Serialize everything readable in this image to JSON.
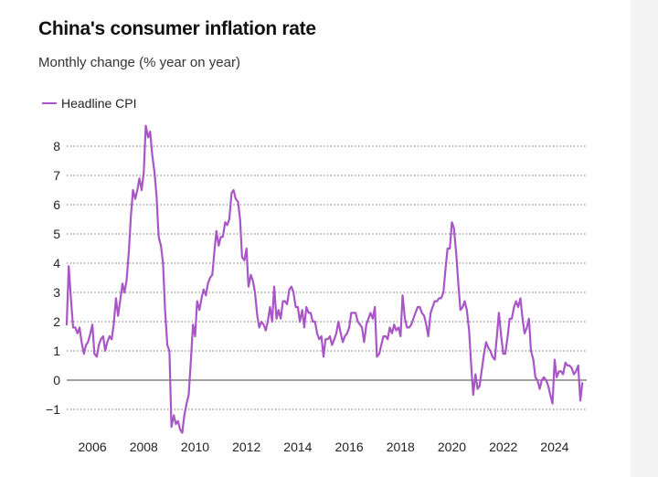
{
  "title": "China's consumer inflation rate",
  "subtitle": "Monthly change (% year on year)",
  "colors": {
    "series": "#a855c7",
    "grid": "#555555",
    "zero_line": "#444444"
  },
  "chart_data": {
    "type": "line",
    "title": "China's consumer inflation rate",
    "subtitle": "Monthly change (% year on year)",
    "xlabel": "",
    "ylabel": "",
    "ylim": [
      -1,
      8
    ],
    "xlim": [
      2005.0,
      2025.25
    ],
    "yticks": [
      -1,
      0,
      1,
      2,
      3,
      4,
      5,
      6,
      7,
      8
    ],
    "ytick_labels": [
      "−1",
      "0",
      "1",
      "2",
      "3",
      "4",
      "5",
      "6",
      "7",
      "8"
    ],
    "xticks": [
      2006,
      2008,
      2010,
      2012,
      2014,
      2016,
      2018,
      2020,
      2022,
      2024
    ],
    "xtick_labels": [
      "2006",
      "2008",
      "2010",
      "2012",
      "2014",
      "2016",
      "2018",
      "2020",
      "2022",
      "2024"
    ],
    "grid": "horizontal dotted",
    "legend": "top-left",
    "series": [
      {
        "name": "Headline CPI",
        "x": [
          2005.0,
          2005.08,
          2005.17,
          2005.25,
          2005.33,
          2005.42,
          2005.5,
          2005.58,
          2005.67,
          2005.75,
          2005.83,
          2005.92,
          2006.0,
          2006.08,
          2006.17,
          2006.25,
          2006.33,
          2006.42,
          2006.5,
          2006.58,
          2006.67,
          2006.75,
          2006.83,
          2006.92,
          2007.0,
          2007.08,
          2007.17,
          2007.25,
          2007.33,
          2007.42,
          2007.5,
          2007.58,
          2007.67,
          2007.75,
          2007.83,
          2007.92,
          2008.0,
          2008.08,
          2008.17,
          2008.25,
          2008.33,
          2008.42,
          2008.5,
          2008.58,
          2008.67,
          2008.75,
          2008.83,
          2008.92,
          2009.0,
          2009.08,
          2009.17,
          2009.25,
          2009.33,
          2009.42,
          2009.5,
          2009.58,
          2009.67,
          2009.75,
          2009.83,
          2009.92,
          2010.0,
          2010.08,
          2010.17,
          2010.25,
          2010.33,
          2010.42,
          2010.5,
          2010.58,
          2010.67,
          2010.75,
          2010.83,
          2010.92,
          2011.0,
          2011.08,
          2011.17,
          2011.25,
          2011.33,
          2011.42,
          2011.5,
          2011.58,
          2011.67,
          2011.75,
          2011.83,
          2011.92,
          2012.0,
          2012.08,
          2012.17,
          2012.25,
          2012.33,
          2012.42,
          2012.5,
          2012.58,
          2012.67,
          2012.75,
          2012.83,
          2012.92,
          2013.0,
          2013.08,
          2013.17,
          2013.25,
          2013.33,
          2013.42,
          2013.5,
          2013.58,
          2013.67,
          2013.75,
          2013.83,
          2013.92,
          2014.0,
          2014.08,
          2014.17,
          2014.25,
          2014.33,
          2014.42,
          2014.5,
          2014.58,
          2014.67,
          2014.75,
          2014.83,
          2014.92,
          2015.0,
          2015.08,
          2015.17,
          2015.25,
          2015.33,
          2015.42,
          2015.5,
          2015.58,
          2015.67,
          2015.75,
          2015.83,
          2015.92,
          2016.0,
          2016.08,
          2016.17,
          2016.25,
          2016.33,
          2016.42,
          2016.5,
          2016.58,
          2016.67,
          2016.75,
          2016.83,
          2016.92,
          2017.0,
          2017.08,
          2017.17,
          2017.25,
          2017.33,
          2017.42,
          2017.5,
          2017.58,
          2017.67,
          2017.75,
          2017.83,
          2017.92,
          2018.0,
          2018.08,
          2018.17,
          2018.25,
          2018.33,
          2018.42,
          2018.5,
          2018.58,
          2018.67,
          2018.75,
          2018.83,
          2018.92,
          2019.0,
          2019.08,
          2019.17,
          2019.25,
          2019.33,
          2019.42,
          2019.5,
          2019.58,
          2019.67,
          2019.75,
          2019.83,
          2019.92,
          2020.0,
          2020.08,
          2020.17,
          2020.25,
          2020.33,
          2020.42,
          2020.5,
          2020.58,
          2020.67,
          2020.75,
          2020.83,
          2020.92,
          2021.0,
          2021.08,
          2021.17,
          2021.25,
          2021.33,
          2021.42,
          2021.5,
          2021.58,
          2021.67,
          2021.75,
          2021.83,
          2021.92,
          2022.0,
          2022.08,
          2022.17,
          2022.25,
          2022.33,
          2022.42,
          2022.5,
          2022.58,
          2022.67,
          2022.75,
          2022.83,
          2022.92,
          2023.0,
          2023.08,
          2023.17,
          2023.25,
          2023.33,
          2023.42,
          2023.5,
          2023.58,
          2023.67,
          2023.75,
          2023.83,
          2023.92,
          2024.0,
          2024.08,
          2024.17,
          2024.25,
          2024.33,
          2024.42,
          2024.5,
          2024.58,
          2024.67,
          2024.75,
          2024.83,
          2024.92,
          2025.0,
          2025.08
        ],
        "values": [
          1.9,
          3.9,
          2.7,
          1.8,
          1.8,
          1.6,
          1.8,
          1.3,
          0.9,
          1.2,
          1.3,
          1.6,
          1.9,
          0.9,
          0.8,
          1.2,
          1.4,
          1.5,
          1.0,
          1.3,
          1.5,
          1.4,
          1.9,
          2.8,
          2.2,
          2.7,
          3.3,
          3.0,
          3.4,
          4.4,
          5.6,
          6.5,
          6.2,
          6.5,
          6.9,
          6.5,
          7.1,
          8.7,
          8.3,
          8.5,
          7.7,
          7.1,
          6.3,
          4.9,
          4.6,
          4.0,
          2.4,
          1.2,
          1.0,
          -1.6,
          -1.2,
          -1.5,
          -1.4,
          -1.7,
          -1.8,
          -1.2,
          -0.8,
          -0.5,
          0.6,
          1.9,
          1.5,
          2.7,
          2.4,
          2.8,
          3.1,
          2.9,
          3.3,
          3.5,
          3.6,
          4.4,
          5.1,
          4.6,
          4.9,
          4.9,
          5.4,
          5.3,
          5.5,
          6.4,
          6.5,
          6.2,
          6.1,
          5.5,
          4.2,
          4.1,
          4.5,
          3.2,
          3.6,
          3.4,
          3.0,
          2.2,
          1.8,
          2.0,
          1.9,
          1.7,
          2.0,
          2.5,
          2.0,
          3.2,
          2.1,
          2.4,
          2.1,
          2.7,
          2.7,
          2.6,
          3.1,
          3.2,
          3.0,
          2.5,
          2.5,
          2.0,
          2.4,
          1.8,
          2.5,
          2.3,
          2.3,
          2.0,
          2.0,
          1.6,
          1.4,
          1.5,
          0.8,
          1.4,
          1.4,
          1.5,
          1.2,
          1.4,
          1.6,
          2.0,
          1.6,
          1.3,
          1.5,
          1.6,
          1.8,
          2.3,
          2.3,
          2.3,
          2.0,
          1.9,
          1.8,
          1.3,
          1.9,
          2.1,
          2.3,
          2.1,
          2.5,
          0.8,
          0.9,
          1.2,
          1.5,
          1.5,
          1.4,
          1.8,
          1.6,
          1.9,
          1.7,
          1.8,
          1.5,
          2.9,
          2.1,
          1.8,
          1.8,
          1.9,
          2.1,
          2.3,
          2.5,
          2.5,
          2.3,
          2.2,
          1.9,
          1.5,
          2.3,
          2.5,
          2.7,
          2.7,
          2.8,
          2.8,
          3.0,
          3.8,
          4.5,
          4.5,
          5.4,
          5.2,
          4.3,
          3.3,
          2.4,
          2.5,
          2.7,
          2.4,
          1.7,
          0.5,
          -0.5,
          0.2,
          -0.3,
          -0.2,
          0.4,
          0.9,
          1.3,
          1.1,
          1.0,
          0.8,
          0.7,
          1.5,
          2.3,
          1.5,
          0.9,
          0.9,
          1.5,
          2.1,
          2.1,
          2.5,
          2.7,
          2.5,
          2.8,
          2.1,
          1.6,
          1.8,
          2.1,
          1.0,
          0.7,
          0.1,
          0.0,
          -0.3,
          0.0,
          0.1,
          0.0,
          -0.2,
          -0.5,
          -0.8,
          0.7,
          0.1,
          0.3,
          0.3,
          0.2,
          0.6,
          0.5,
          0.5,
          0.4,
          0.2,
          0.3,
          0.5,
          -0.7,
          -0.1
        ]
      }
    ]
  }
}
